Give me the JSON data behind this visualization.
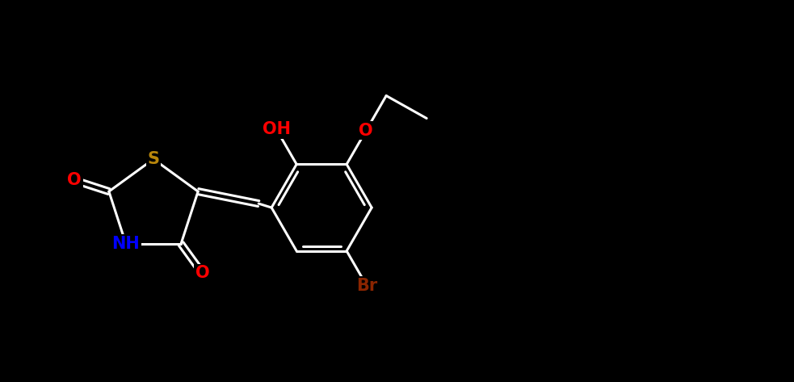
{
  "background_color": "#000000",
  "bond_color": "#ffffff",
  "atom_colors": {
    "S": "#b8860b",
    "O": "#ff0000",
    "N": "#0000ff",
    "Br": "#8b2500",
    "C": "#ffffff",
    "H": "#ffffff"
  },
  "figsize": [
    9.83,
    4.73
  ],
  "dpi": 100,
  "lw": 2.2,
  "fontsize": 15
}
